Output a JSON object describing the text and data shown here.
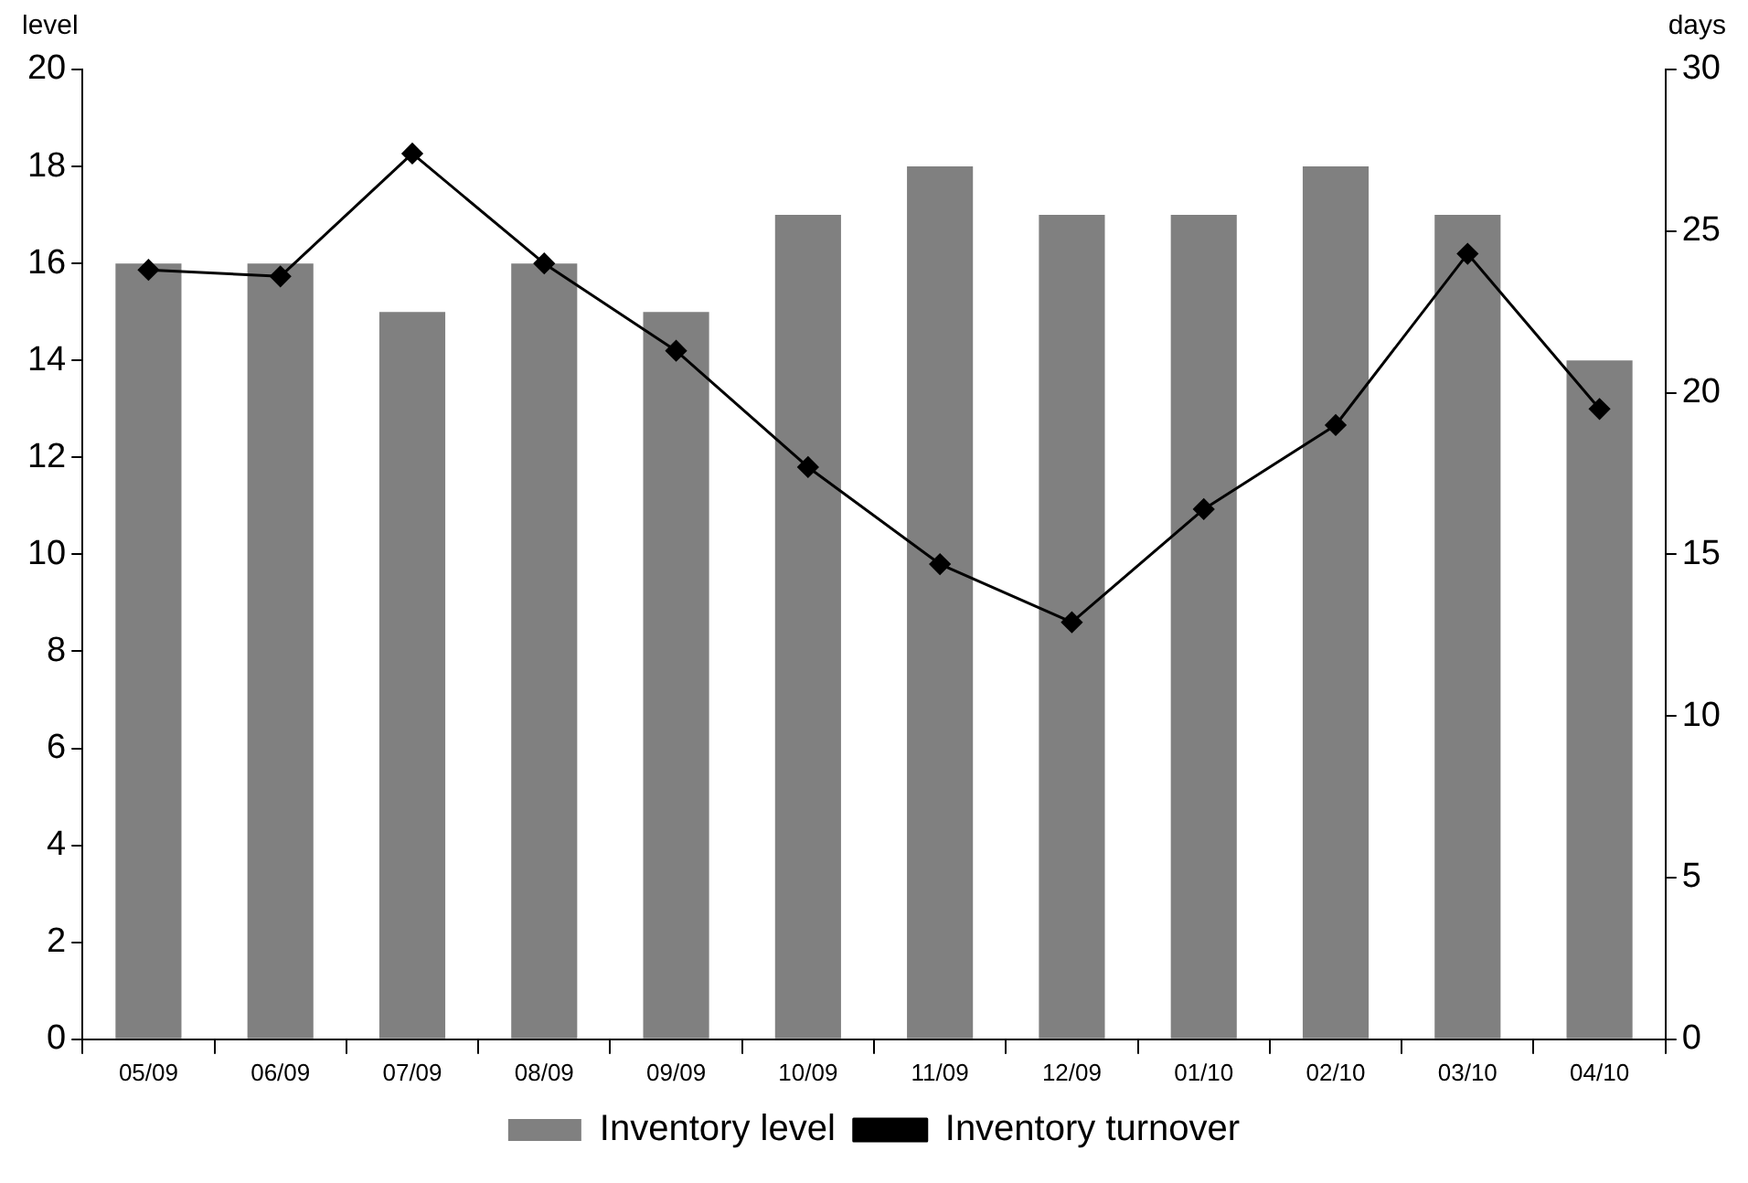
{
  "chart_data": {
    "type": "bar",
    "categories": [
      "05/09",
      "06/09",
      "07/09",
      "08/09",
      "09/09",
      "10/09",
      "11/09",
      "12/09",
      "01/10",
      "02/10",
      "03/10",
      "04/10"
    ],
    "ylabel": "level",
    "y2label": "days",
    "series": [
      {
        "name": "Inventory level",
        "color": "#808080",
        "values": [
          16,
          16,
          15,
          16,
          15,
          17,
          18,
          17,
          17,
          18,
          17,
          14
        ]
      },
      {
        "name": "Inventory turnover",
        "type": "line",
        "axis": "y2",
        "color": "#000000",
        "marker": "diamond",
        "values": [
          23.8,
          23.6,
          27.4,
          24.0,
          21.3,
          17.7,
          14.7,
          12.9,
          16.4,
          19.0,
          24.3,
          19.5
        ]
      }
    ],
    "ylim": [
      0,
      20
    ],
    "yticks": [
      0,
      2,
      4,
      6,
      8,
      10,
      12,
      14,
      16,
      18,
      20
    ],
    "y2lim": [
      0,
      30
    ],
    "y2ticks": [
      0,
      5,
      10,
      15,
      20,
      25,
      30
    ],
    "grid": false,
    "legend": "bottom"
  }
}
